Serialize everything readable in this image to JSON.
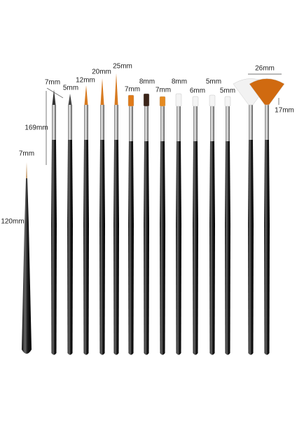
{
  "labels": [
    "7mm",
    "5mm",
    "12mm",
    "20mm",
    "25mm",
    "7mm",
    "8mm",
    "7mm",
    "8mm",
    "6mm",
    "5mm",
    "5mm",
    "26mm",
    "17mm",
    "169mm",
    "7mm",
    "120mm"
  ]
}
